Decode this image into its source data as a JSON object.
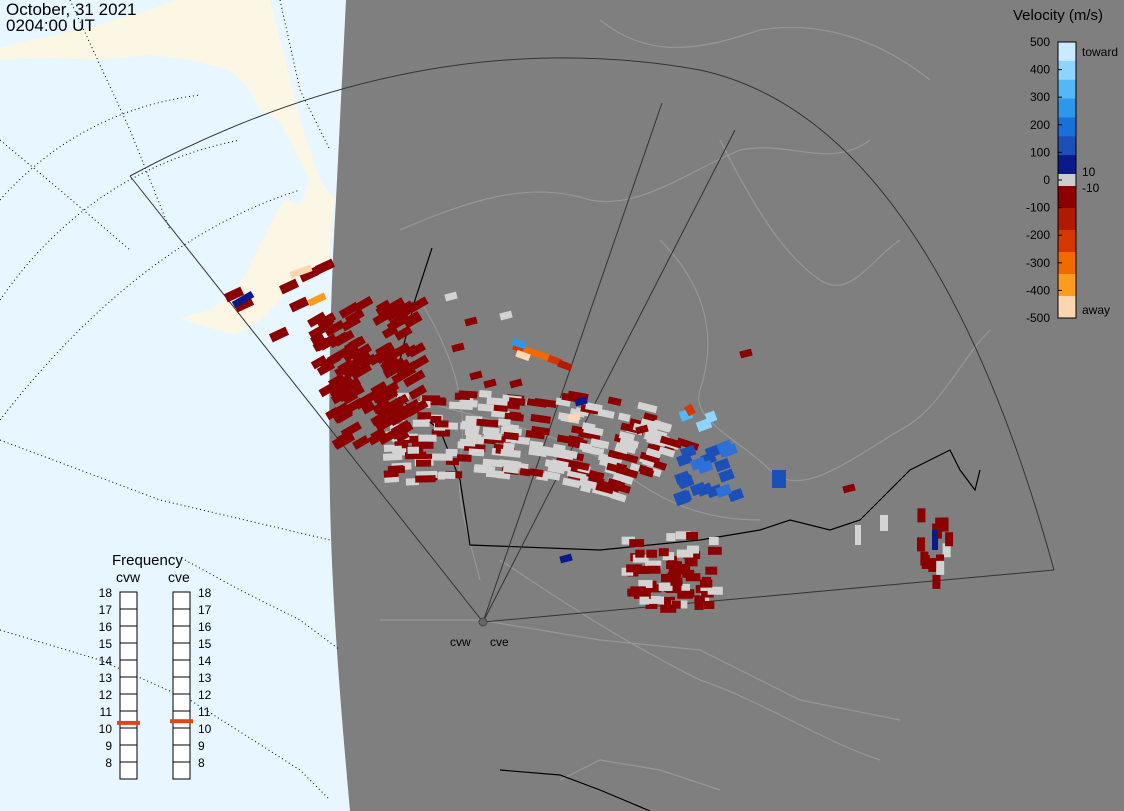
{
  "header": {
    "date": "October, 31 2021",
    "time": "0204:00 UT"
  },
  "legend": {
    "title": "Velocity (m/s)",
    "ticks": [
      "500",
      "400",
      "300",
      "200",
      "100",
      "0",
      "-100",
      "-200",
      "-300",
      "-400",
      "-500"
    ],
    "toward": "toward",
    "away": "away",
    "inner_pos": "10",
    "inner_neg": "-10",
    "colors": [
      "#c9ebff",
      "#8fd3ff",
      "#55b7f5",
      "#2d98ea",
      "#1a70d8",
      "#1d4fb8",
      "#0a1a8a",
      "#cccccc",
      "#8b0000",
      "#b01a00",
      "#d43800",
      "#f06a00",
      "#ff9c20",
      "#ffd6b0"
    ]
  },
  "frequency": {
    "title": "Frequency",
    "radars": [
      {
        "name": "cvw",
        "freq_mhz": 10.8
      },
      {
        "name": "cve",
        "freq_mhz": 10.9
      }
    ],
    "levels": [
      "18",
      "17",
      "16",
      "15",
      "14",
      "13",
      "12",
      "11",
      "10",
      "9",
      "8"
    ]
  },
  "radar_sites": [
    "cvw",
    "cve"
  ]
}
